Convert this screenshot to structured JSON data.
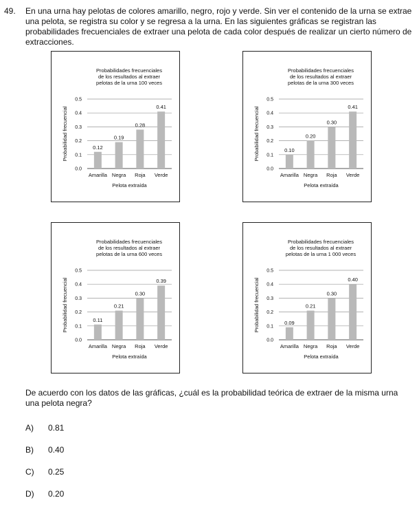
{
  "question": {
    "number": "49.",
    "stem": "En una urna hay pelotas de colores amarillo, negro, rojo y verde. Sin ver el contenido de la urna se extrae una pelota, se registra su color y se regresa a la urna. En las siguientes gráficas se registran las probabilidades frecuenciales de extraer una pelota de cada color después de realizar un cierto número de extracciones.",
    "prompt": "De acuerdo con los datos de las gráficas, ¿cuál es la probabilidad teórica de extraer de la misma urna una pelota negra?",
    "options": [
      {
        "letter": "A)",
        "text": "0.81"
      },
      {
        "letter": "B)",
        "text": "0.40"
      },
      {
        "letter": "C)",
        "text": "0.25"
      },
      {
        "letter": "D)",
        "text": "0.20"
      }
    ]
  },
  "chart_data": [
    {
      "type": "bar",
      "title": [
        "Probabilidades frecuenciales",
        "de los resultados al extraer",
        "pelotas de la urna 100 veces"
      ],
      "xlabel": "Pelota extraída",
      "ylabel": "Probabilidad frecuencial",
      "categories": [
        "Amarilla",
        "Negra",
        "Roja",
        "Verde"
      ],
      "values": [
        0.12,
        0.19,
        0.28,
        0.41
      ],
      "labels": [
        "0.12",
        "0.19",
        "0.28",
        "0.41"
      ],
      "ylim": [
        0,
        0.5
      ],
      "yticks": [
        "0.0",
        "0.1",
        "0.2",
        "0.3",
        "0.4",
        "0.5"
      ],
      "grid": true,
      "bar_color": "#b9b9b9"
    },
    {
      "type": "bar",
      "title": [
        "Probabilidades frecuenciales",
        "de los resultados al extraer",
        "pelotas de la urna 300 veces"
      ],
      "xlabel": "Pelota extraída",
      "ylabel": "Probabilidad frecuencial",
      "categories": [
        "Amarilla",
        "Negra",
        "Roja",
        "Verde"
      ],
      "values": [
        0.1,
        0.2,
        0.3,
        0.41
      ],
      "labels": [
        "0.10",
        "0.20",
        "0.30",
        "0.41"
      ],
      "ylim": [
        0,
        0.5
      ],
      "yticks": [
        "0.0",
        "0.1",
        "0.2",
        "0.3",
        "0.4",
        "0.5"
      ],
      "grid": true,
      "bar_color": "#b9b9b9"
    },
    {
      "type": "bar",
      "title": [
        "Probabilidades frecuenciales",
        "de los resultados al extraer",
        "pelotas de la urna 600 veces"
      ],
      "xlabel": "Pelota extraída",
      "ylabel": "Probabilidad frecuencial",
      "categories": [
        "Amarilla",
        "Negra",
        "Roja",
        "Verde"
      ],
      "values": [
        0.11,
        0.21,
        0.3,
        0.39
      ],
      "labels": [
        "0.11",
        "0.21",
        "0.30",
        "0.39"
      ],
      "ylim": [
        0,
        0.5
      ],
      "yticks": [
        "0.0",
        "0.1",
        "0.2",
        "0.3",
        "0.4",
        "0.5"
      ],
      "grid": true,
      "bar_color": "#b9b9b9"
    },
    {
      "type": "bar",
      "title": [
        "Probabilidades frecuenciales",
        "de los resultados al extraer",
        "pelotas de la urna 1 000 veces"
      ],
      "xlabel": "Pelota extraída",
      "ylabel": "Probabilidad frecuencial",
      "categories": [
        "Amarilla",
        "Negra",
        "Roja",
        "Verde"
      ],
      "values": [
        0.09,
        0.21,
        0.3,
        0.4
      ],
      "labels": [
        "0.09",
        "0.21",
        "0.30",
        "0.40"
      ],
      "ylim": [
        0,
        0.5
      ],
      "yticks": [
        "0.0",
        "0.1",
        "0.2",
        "0.3",
        "0.4",
        "0.5"
      ],
      "grid": true,
      "bar_color": "#b9b9b9"
    }
  ]
}
